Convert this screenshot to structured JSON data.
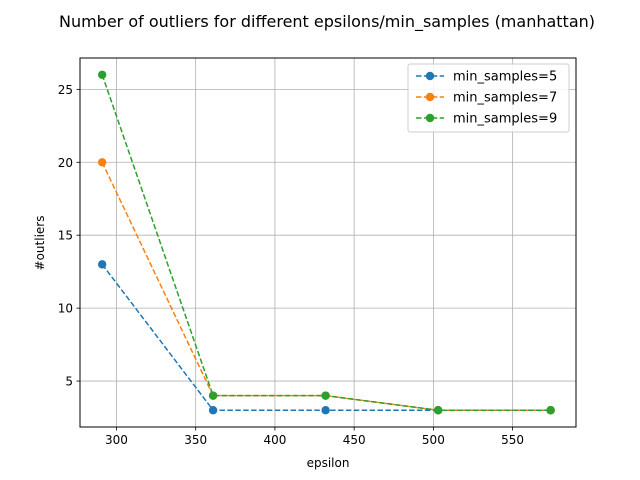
{
  "chart_data": {
    "type": "line",
    "title": "Number of outliers for different epsilons/min_samples (manhattan)",
    "xlabel": "epsilon",
    "ylabel": "#outliers",
    "xlim": [
      277,
      590
    ],
    "ylim": [
      1.85,
      27.15
    ],
    "xticks": [
      300,
      350,
      400,
      450,
      500,
      550
    ],
    "yticks": [
      5,
      10,
      15,
      20,
      25
    ],
    "grid": true,
    "legend_position": "top-right",
    "x": [
      291,
      361,
      432,
      503,
      574
    ],
    "series": [
      {
        "name": "min_samples=5",
        "color": "#1f77b4",
        "values": [
          13,
          3,
          3,
          3,
          3
        ]
      },
      {
        "name": "min_samples=7",
        "color": "#ff7f0e",
        "values": [
          20,
          4,
          4,
          3,
          3
        ]
      },
      {
        "name": "min_samples=9",
        "color": "#2ca02c",
        "values": [
          26,
          4,
          4,
          3,
          3
        ]
      }
    ]
  }
}
